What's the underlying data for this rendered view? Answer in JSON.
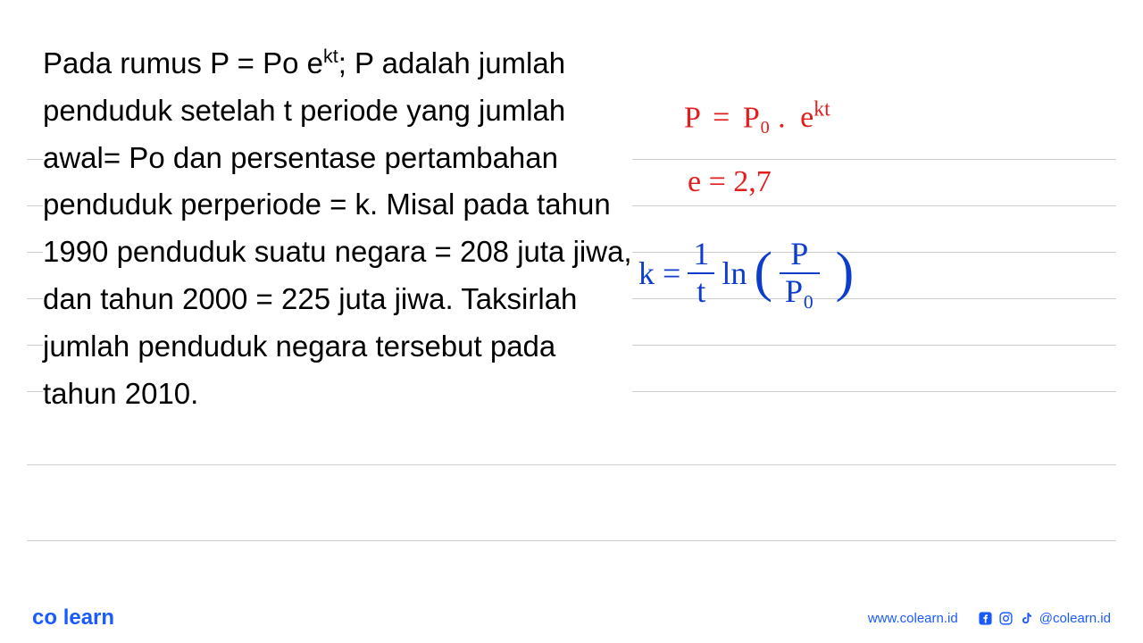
{
  "problem": {
    "text_html": "Pada rumus P = Po e<sup>kt</sup>; P adalah jumlah penduduk setelah t periode yang jumlah awal= Po dan persentase pertambahan penduduk perperiode = k. Misal pada tahun 1990 penduduk suatu negara = 208 juta jiwa, dan tahun 2000 = 225 juta jiwa. Taksirlah jumlah penduduk negara tersebut pada tahun 2010.",
    "font_size": 33,
    "color": "#000000"
  },
  "handwriting": {
    "red": {
      "color": "#e21d1d",
      "eq1_lhs": "P",
      "eq1_eq": "=",
      "eq1_mid": "P₀ .",
      "eq1_base": "e",
      "eq1_exp": "kt",
      "eq2": "e  = 2,7"
    },
    "blue": {
      "color": "#0d3dcc",
      "k_label": "k =",
      "frac1_num": "1",
      "frac1_den": "t",
      "ln": "ln",
      "frac2_num": "P",
      "frac2_den": "P₀"
    }
  },
  "paper": {
    "line_color": "#cfcfcf",
    "line_positions": [
      178,
      230,
      282,
      334,
      386,
      438,
      520,
      605
    ]
  },
  "footer": {
    "logo_main": "co",
    "logo_rest": "learn",
    "logo_color": "#1a5aff",
    "dot_color": "#ff7a1a",
    "url": "www.colearn.id",
    "handle": "@colearn.id"
  }
}
